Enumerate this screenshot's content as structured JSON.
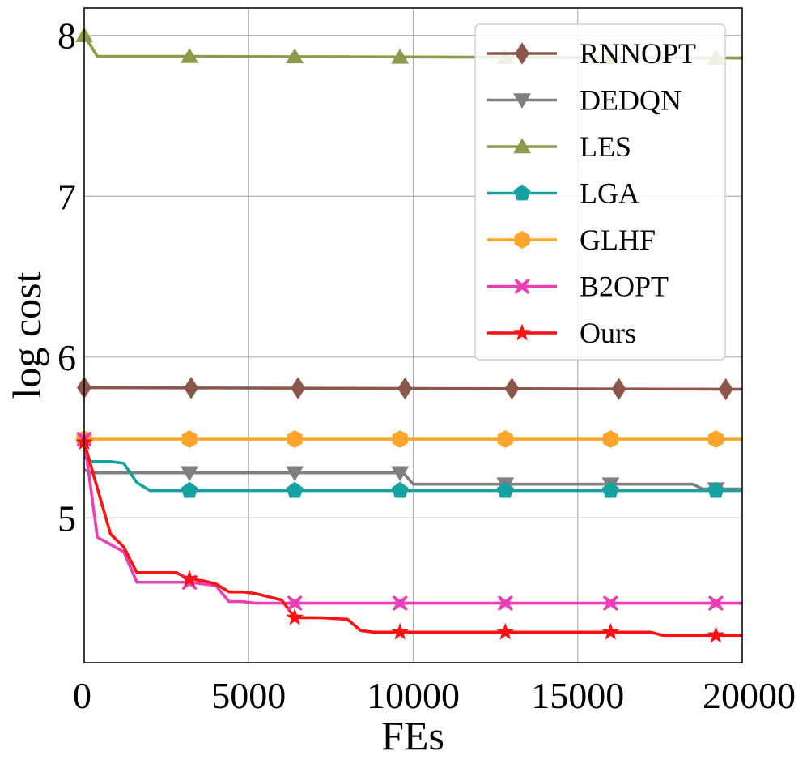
{
  "chart_data": {
    "type": "line",
    "title": "",
    "xlabel": "FEs",
    "ylabel": "log cost",
    "xlim": [
      0,
      20000
    ],
    "ylim": [
      4.1,
      8.17
    ],
    "xticks": [
      0,
      5000,
      10000,
      15000,
      20000
    ],
    "xtick_labels": [
      "0",
      "5000",
      "10000",
      "15000",
      "20000"
    ],
    "yticks": [
      5,
      6,
      7,
      8
    ],
    "ytick_labels": [
      "5",
      "6",
      "7",
      "8"
    ],
    "grid": true,
    "legend_position": "top-right",
    "series": [
      {
        "name": "RNNOPT",
        "color": "#8c564b",
        "marker": "diamond",
        "x": [
          0,
          20000
        ],
        "y": [
          5.81,
          5.8
        ],
        "marker_x": [
          0,
          3250,
          6500,
          9750,
          13000,
          16250,
          19500
        ]
      },
      {
        "name": "DEDQN",
        "color": "#7f7f7f",
        "marker": "triangle-down",
        "x": [
          0,
          200,
          9700,
          10000,
          18500,
          18800,
          20000
        ],
        "y": [
          5.3,
          5.28,
          5.28,
          5.21,
          5.21,
          5.18,
          5.18
        ],
        "marker_x": [
          3200,
          6400,
          9600,
          12800,
          16000,
          19200
        ]
      },
      {
        "name": "LES",
        "color": "#8c9a4b",
        "marker": "triangle-up",
        "x": [
          0,
          400,
          3200,
          20000
        ],
        "y": [
          8.0,
          7.87,
          7.87,
          7.86
        ],
        "marker_x": [
          0,
          3200,
          6400,
          9600,
          12800,
          16000,
          19200
        ]
      },
      {
        "name": "LGA",
        "color": "#17a2a2",
        "marker": "pentagon",
        "x": [
          0,
          200,
          800,
          1200,
          1600,
          2000,
          20000
        ],
        "y": [
          5.38,
          5.35,
          5.35,
          5.34,
          5.22,
          5.17,
          5.17
        ],
        "marker_x": [
          3200,
          6400,
          9600,
          12800,
          16000,
          19200
        ]
      },
      {
        "name": "GLHF",
        "color": "#ffa52b",
        "marker": "hexagon",
        "x": [
          0,
          20000
        ],
        "y": [
          5.49,
          5.49
        ],
        "marker_x": [
          0,
          3200,
          6400,
          9600,
          12800,
          16000,
          19200
        ]
      },
      {
        "name": "B2OPT",
        "color": "#ea3fb5",
        "marker": "x",
        "x": [
          0,
          400,
          1200,
          1600,
          3200,
          4000,
          4400,
          4800,
          5200,
          6400,
          20000
        ],
        "y": [
          5.49,
          4.88,
          4.79,
          4.6,
          4.6,
          4.58,
          4.48,
          4.48,
          4.47,
          4.47,
          4.47
        ],
        "marker_x": [
          0,
          3200,
          6400,
          9600,
          12800,
          16000,
          19200
        ]
      },
      {
        "name": "Ours",
        "color": "#ff1111",
        "marker": "star",
        "x": [
          0,
          800,
          1200,
          1600,
          2800,
          3200,
          3600,
          4000,
          4400,
          4800,
          5200,
          6000,
          6400,
          7200,
          8000,
          8400,
          8800,
          16800,
          17200,
          17600,
          20000
        ],
        "y": [
          5.47,
          4.9,
          4.82,
          4.66,
          4.66,
          4.62,
          4.61,
          4.59,
          4.54,
          4.54,
          4.53,
          4.49,
          4.38,
          4.38,
          4.37,
          4.3,
          4.29,
          4.29,
          4.29,
          4.27,
          4.27
        ],
        "marker_x": [
          0,
          3200,
          6400,
          9600,
          12800,
          16000,
          19200
        ]
      }
    ]
  }
}
